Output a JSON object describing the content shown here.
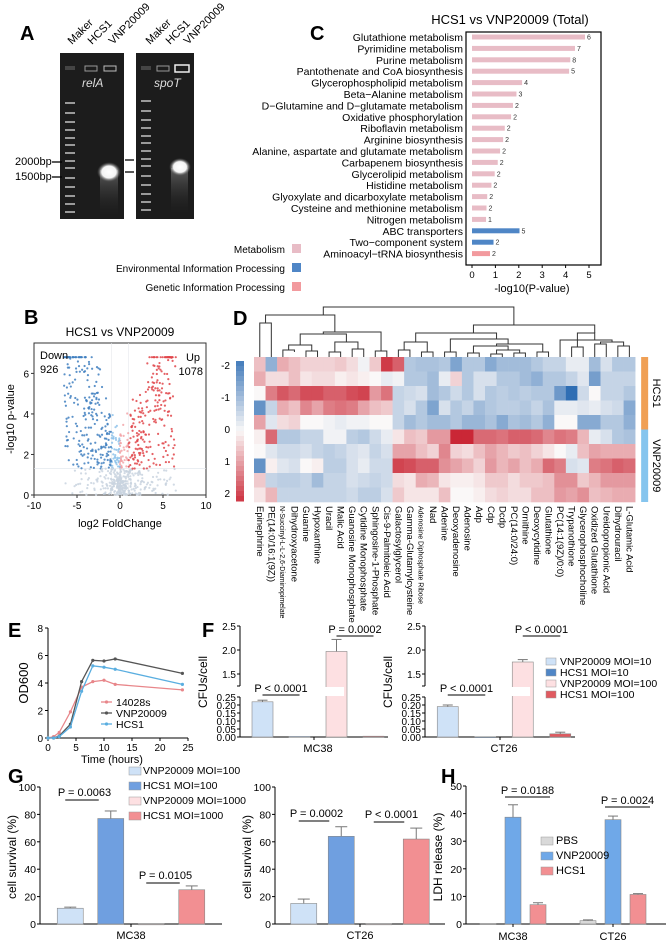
{
  "panels": {
    "A": {
      "letter": "A",
      "lane_labels_left": [
        "Maker",
        "HCS1",
        "VNP20009"
      ],
      "lane_labels_right": [
        "Maker",
        "HCS1",
        "VNP20009"
      ],
      "gene_left": "relA",
      "gene_right": "spoT",
      "size_markers": [
        "2000bp",
        "1500bp"
      ]
    },
    "B": {
      "letter": "B"
    },
    "C": {
      "letter": "C"
    },
    "D": {
      "letter": "D"
    },
    "E": {
      "letter": "E"
    },
    "F": {
      "letter": "F"
    },
    "G": {
      "letter": "G"
    },
    "H": {
      "letter": "H"
    }
  },
  "chart_data": [
    {
      "id": "C",
      "type": "bar",
      "orientation": "horizontal",
      "title": "HCS1 vs VNP20009 (Total)",
      "xlabel": "-log10(P-value)",
      "xlim": [
        0,
        5
      ],
      "xticks": [
        "0",
        "1",
        "2",
        "3",
        "4",
        "5"
      ],
      "categories": [
        "Glutathione metabolism",
        "Pyrimidine metabolism",
        "Purine metabolism",
        "Pantothenate and CoA biosynthesis",
        "Glycerophospholipid metabolism",
        "Beta−Alanine metabolism",
        "D−Glutamine and D−glutamate metabolism",
        "Oxidative phosphorylation",
        "Riboflavin metabolism",
        "Arginine biosynthesis",
        "Alanine, aspartate and glutamate metabolism",
        "Carbapenem biosynthesis",
        "Glycerolipid metabolism",
        "Histidine metabolism",
        "Glyoxylate and dicarboxylate metabolism",
        "Cysteine and methionine metabolism",
        "Nitrogen metabolism",
        "ABC transporters",
        "Two−component system",
        "Aminoacyl−tRNA biosynthesis"
      ],
      "values": [
        4.83,
        4.4,
        4.2,
        4.15,
        2.14,
        1.9,
        1.75,
        1.67,
        1.4,
        1.33,
        1.2,
        1.1,
        0.97,
        0.83,
        0.65,
        0.62,
        0.6,
        2.03,
        0.92,
        0.77
      ],
      "counts": [
        "6",
        "7",
        "8",
        "5",
        "4",
        "3",
        "2",
        "2",
        "2",
        "2",
        "2",
        "2",
        "2",
        "2",
        "2",
        "2",
        "1",
        "5",
        "2",
        "2"
      ],
      "groups": [
        0,
        0,
        0,
        0,
        0,
        0,
        0,
        0,
        0,
        0,
        0,
        0,
        0,
        0,
        0,
        0,
        0,
        1,
        1,
        2
      ],
      "legend": [
        {
          "name": "Metabolism",
          "color": "#e8bcc6"
        },
        {
          "name": "Environmental Information Processing",
          "color": "#4f86c6"
        },
        {
          "name": "Genetic Information Processing",
          "color": "#f29a9e"
        }
      ],
      "legend_position": "left-bottom"
    },
    {
      "id": "B",
      "type": "scatter",
      "subtype": "volcano",
      "title": "HCS1 vs VNP20009",
      "xlabel": "log2 FoldChange",
      "ylabel": "-log10 p-value",
      "xlim": [
        -10,
        10
      ],
      "ylim": [
        0,
        7.5
      ],
      "xticks": [
        "-10",
        "-5",
        "0",
        "5",
        "10"
      ],
      "yticks": [
        "0",
        "2",
        "4",
        "6"
      ],
      "annotations": [
        {
          "text": "Down",
          "count": "926",
          "position": "top-left"
        },
        {
          "text": "Up",
          "count": "1078",
          "position": "top-right"
        }
      ],
      "threshold_p": 1.3,
      "colors": {
        "down": "#3f7fbf",
        "up": "#e0454a",
        "ns": "#c9d4df",
        "down_light": "#8ec2ea",
        "up_light": "#f2a5a8"
      }
    },
    {
      "id": "D",
      "type": "heatmap",
      "row_groups": [
        {
          "name": "HCS1",
          "color": "#f0a055",
          "rows": 5
        },
        {
          "name": "VNP20009",
          "color": "#86c5ee",
          "rows": 5
        }
      ],
      "colorbar_ticks": [
        "-2",
        "-1",
        "0",
        "1",
        "2"
      ],
      "colorbar_range": [
        -2,
        2
      ],
      "columns": [
        "Epinephrine",
        "PE(14:0/16:1(9Z))",
        "N-Succinyl-L-L-2,6-Diaminopimelate",
        "Dihydroxyacetone",
        "Guanine",
        "Hypoxanthine",
        "Uracil",
        "Malic Acid",
        "Guanosine Monophosphate",
        "Cytidine Monophosphate",
        "Sphingosine-1-Phosphate",
        "Cis-9-Palmitoleic Acid",
        "Galactosylglycerol",
        "Gamma-Glutamylcysteine",
        "Adenosine Diphosphate Ribose",
        "Nad",
        "Adenine",
        "Deoxyadenosine",
        "Adenosine",
        "Adp",
        "Cdp",
        "Dcdp",
        "PC(14:0/24:0)",
        "Ornithine",
        "Deoxycytidine",
        "Glutathione",
        "PC(14:1(9Z)/0:0)",
        "Trypanothione",
        "Glycerophosphocholine",
        "Oxidized Glutathione",
        "Ureidopropionic Acid",
        "Dihydrouracil",
        "L-Glutamic Acid"
      ],
      "values": [
        [
          0.6,
          -1.2,
          0.8,
          0.6,
          0.4,
          0.4,
          0.4,
          0.5,
          0.3,
          -0.1,
          0.5,
          2.0,
          1.6,
          -0.8,
          -0.9,
          -0.9,
          -0.8,
          -1.4,
          -0.8,
          -0.8,
          -1.3,
          -1.0,
          -1.0,
          -1.0,
          -0.8,
          -0.6,
          -0.6,
          -0.2,
          -0.2,
          -1.0,
          -0.4,
          -0.8,
          -0.8
        ],
        [
          0.8,
          0.3,
          0.3,
          0.6,
          0.2,
          0.3,
          0.3,
          0.1,
          0.2,
          0.1,
          0.0,
          -0.2,
          -0.1,
          -0.8,
          -0.8,
          -1.0,
          -0.2,
          0.4,
          -0.8,
          -0.4,
          -0.4,
          -0.8,
          -0.8,
          -1.0,
          -1.2,
          -0.8,
          -0.8,
          -0.6,
          -0.3,
          -1.5,
          -0.6,
          -0.6,
          -0.6
        ],
        [
          0.0,
          1.3,
          1.7,
          1.5,
          1.8,
          1.8,
          1.6,
          1.6,
          1.8,
          1.9,
          1.0,
          1.4,
          -0.6,
          -0.5,
          -0.4,
          -1.0,
          -0.8,
          -0.5,
          -0.8,
          -0.4,
          -0.8,
          -0.7,
          -0.8,
          -0.7,
          -0.8,
          -0.8,
          -1.6,
          -2.3,
          -0.5,
          0.0,
          -0.6,
          -0.6,
          -0.8
        ],
        [
          -1.7,
          -0.6,
          0.8,
          0.6,
          1.2,
          0.9,
          1.3,
          1.4,
          1.3,
          0.9,
          0.6,
          0.5,
          -0.6,
          -0.4,
          -0.8,
          -1.4,
          -0.4,
          -0.8,
          -0.6,
          -1.0,
          -0.8,
          -0.7,
          -0.7,
          -0.8,
          -0.6,
          -0.9,
          -0.2,
          -0.2,
          -0.3,
          -0.2,
          -0.4,
          -0.5,
          -1.3
        ],
        [
          0.9,
          -0.3,
          0.3,
          0.4,
          0.0,
          0.0,
          -0.1,
          -0.2,
          -0.1,
          -0.1,
          0.0,
          0.0,
          -0.6,
          -1.0,
          -0.8,
          -1.0,
          -1.0,
          -0.8,
          -1.1,
          -1.1,
          -0.9,
          -1.3,
          -0.9,
          -1.0,
          -0.8,
          -1.2,
          0.0,
          0.0,
          -1.3,
          -1.3,
          -0.8,
          -0.8,
          -1.2
        ],
        [
          0.1,
          1.5,
          -0.8,
          -0.8,
          -0.6,
          -0.6,
          -0.1,
          -0.1,
          -0.7,
          -0.8,
          -0.5,
          -0.2,
          0.2,
          0.6,
          0.5,
          1.0,
          1.0,
          2.2,
          2.2,
          1.5,
          1.5,
          1.4,
          1.6,
          1.6,
          1.5,
          1.2,
          1.4,
          1.3,
          0.7,
          -0.2,
          -0.4,
          -0.8,
          -0.9
        ],
        [
          0.0,
          -0.3,
          -0.5,
          -0.5,
          -0.4,
          -0.6,
          -0.7,
          -0.6,
          -0.4,
          -0.3,
          -0.6,
          -0.4,
          0.9,
          0.9,
          0.6,
          0.4,
          1.2,
          0.4,
          0.3,
          0.6,
          0.9,
          0.7,
          0.5,
          0.6,
          0.4,
          0.2,
          0.0,
          -0.2,
          0.6,
          0.9,
          0.8,
          0.8,
          0.8
        ],
        [
          -1.7,
          0.1,
          -0.3,
          -0.4,
          0.0,
          0.1,
          -0.7,
          -0.7,
          -0.4,
          -0.2,
          -0.5,
          -0.5,
          1.9,
          1.8,
          1.6,
          1.6,
          1.1,
          0.9,
          0.7,
          0.4,
          1.0,
          0.7,
          0.9,
          0.6,
          0.8,
          1.5,
          1.3,
          -0.4,
          -0.3,
          1.3,
          1.4,
          1.6,
          1.5
        ],
        [
          0.5,
          -0.6,
          -0.7,
          -0.7,
          -0.6,
          -1.0,
          -0.6,
          -0.6,
          -0.4,
          -0.5,
          -0.6,
          -0.5,
          0.3,
          0.2,
          0.8,
          0.7,
          0.2,
          0.1,
          0.1,
          0.2,
          0.5,
          0.5,
          0.3,
          0.5,
          0.5,
          0.6,
          1.1,
          1.1,
          0.5,
          0.7,
          1.0,
          1.0,
          1.0
        ],
        [
          0.2,
          0.7,
          -0.6,
          -0.6,
          -0.6,
          -0.6,
          -0.6,
          -0.6,
          -0.5,
          -0.7,
          -0.7,
          -0.4,
          0.5,
          0.2,
          0.2,
          0.2,
          0.6,
          0.0,
          0.0,
          0.1,
          0.3,
          0.4,
          0.3,
          0.3,
          0.6,
          0.6,
          1.0,
          0.9,
          1.1,
          0.6,
          0.7,
          0.8,
          0.8
        ]
      ]
    },
    {
      "id": "E",
      "type": "line",
      "xlabel": "Time (hours)",
      "ylabel": "OD600",
      "xlim": [
        0,
        25
      ],
      "ylim": [
        0,
        8
      ],
      "xticks": [
        "0",
        "5",
        "10",
        "15",
        "20",
        "25"
      ],
      "yticks": [
        "0",
        "2",
        "4",
        "6",
        "8"
      ],
      "x": [
        0,
        1,
        2,
        4,
        6,
        8,
        10,
        12,
        24
      ],
      "series": [
        {
          "name": "14028s",
          "color": "#e8868a",
          "values": [
            0,
            0.1,
            0.4,
            1.9,
            3.7,
            4.1,
            4.2,
            3.9,
            3.5
          ]
        },
        {
          "name": "VNP20009",
          "color": "#555555",
          "values": [
            0,
            0,
            0.15,
            1.0,
            4.1,
            5.65,
            5.6,
            5.75,
            4.7
          ]
        },
        {
          "name": "HCS1",
          "color": "#5aaee0",
          "values": [
            0,
            0,
            0.1,
            0.8,
            3.4,
            5.25,
            5.15,
            5.0,
            3.9
          ]
        }
      ],
      "legend_position": "bottom-center"
    },
    {
      "id": "F",
      "type": "bar",
      "subtype": "broken-axis",
      "ylabel": "CFUs/cell",
      "yticks_low": [
        "0.00",
        "0.05",
        "0.10",
        "0.15",
        "0.20",
        "0.25"
      ],
      "yticks_high": [
        "1.5",
        "2.0",
        "2.5"
      ],
      "series_names": [
        "VNP20009 MOI=10",
        "HCS1 MOI=10",
        "VNP20009 MOI=100",
        "HCS1 MOI=100"
      ],
      "series_colors": [
        "#cfe2f7",
        "#4f86c6",
        "#fde0e2",
        "#e05a60"
      ],
      "legend_position": "right",
      "panels": [
        {
          "category": "MC38",
          "values": [
            0.22,
            0.003,
            1.97,
            0.005
          ],
          "errors": [
            0.01,
            0.0,
            0.25,
            0.0
          ],
          "pvalues": [
            {
              "text": "P < 0.0001",
              "between": [
                0,
                1
              ]
            },
            {
              "text": "P = 0.0002",
              "between": [
                2,
                3
              ]
            }
          ]
        },
        {
          "category": "CT26",
          "values": [
            0.19,
            0.001,
            1.75,
            0.02
          ],
          "errors": [
            0.01,
            0.0,
            0.05,
            0.01
          ],
          "pvalues": [
            {
              "text": "P < 0.0001",
              "between": [
                0,
                1
              ]
            },
            {
              "text": "P < 0.0001",
              "between": [
                2,
                3
              ]
            }
          ]
        }
      ]
    },
    {
      "id": "G",
      "type": "bar",
      "ylabel": "cell survival (%)",
      "ylim": [
        0,
        100
      ],
      "yticks": [
        "0",
        "20",
        "40",
        "60",
        "80",
        "100"
      ],
      "series_names": [
        "VNP20009 MOI=100",
        "HCS1 MOI=100",
        "VNP20009 MOI=1000",
        "HCS1 MOI=1000"
      ],
      "series_colors": [
        "#cfe2f7",
        "#6f9fe0",
        "#fde0e2",
        "#f28f92"
      ],
      "legend_position": "top",
      "panels": [
        {
          "category": "MC38",
          "values": [
            11.5,
            77,
            0,
            25
          ],
          "errors": [
            0.8,
            5.5,
            0,
            2.8
          ],
          "pvalues": [
            {
              "text": "P = 0.0063",
              "between": [
                0,
                1
              ]
            },
            {
              "text": "P = 0.0105",
              "between": [
                2,
                3
              ]
            }
          ]
        },
        {
          "category": "CT26",
          "values": [
            15,
            64,
            0,
            62
          ],
          "errors": [
            3.2,
            7,
            0,
            8
          ],
          "pvalues": [
            {
              "text": "P = 0.0002",
              "between": [
                0,
                1
              ]
            },
            {
              "text": "P < 0.0001",
              "between": [
                2,
                3
              ]
            }
          ]
        }
      ]
    },
    {
      "id": "H",
      "type": "bar",
      "ylabel": "LDH release (%)",
      "ylim": [
        0,
        50
      ],
      "yticks": [
        "0",
        "10",
        "20",
        "30",
        "40",
        "50"
      ],
      "categories": [
        "MC38",
        "CT26"
      ],
      "series": [
        {
          "name": "PBS",
          "color": "#d9d9d9",
          "values": [
            0,
            1.2
          ],
          "errors": [
            0,
            0.3
          ]
        },
        {
          "name": "VNP20009",
          "color": "#6fa8e8",
          "values": [
            38.7,
            37.8
          ],
          "errors": [
            4.5,
            1.3
          ]
        },
        {
          "name": "HCS1",
          "color": "#f28f92",
          "values": [
            7.0,
            10.7
          ],
          "errors": [
            0.7,
            0.3
          ]
        }
      ],
      "pvalues": [
        {
          "text": "P = 0.0188",
          "category": "MC38"
        },
        {
          "text": "P = 0.0024",
          "category": "CT26"
        }
      ],
      "legend_position": "center"
    }
  ]
}
